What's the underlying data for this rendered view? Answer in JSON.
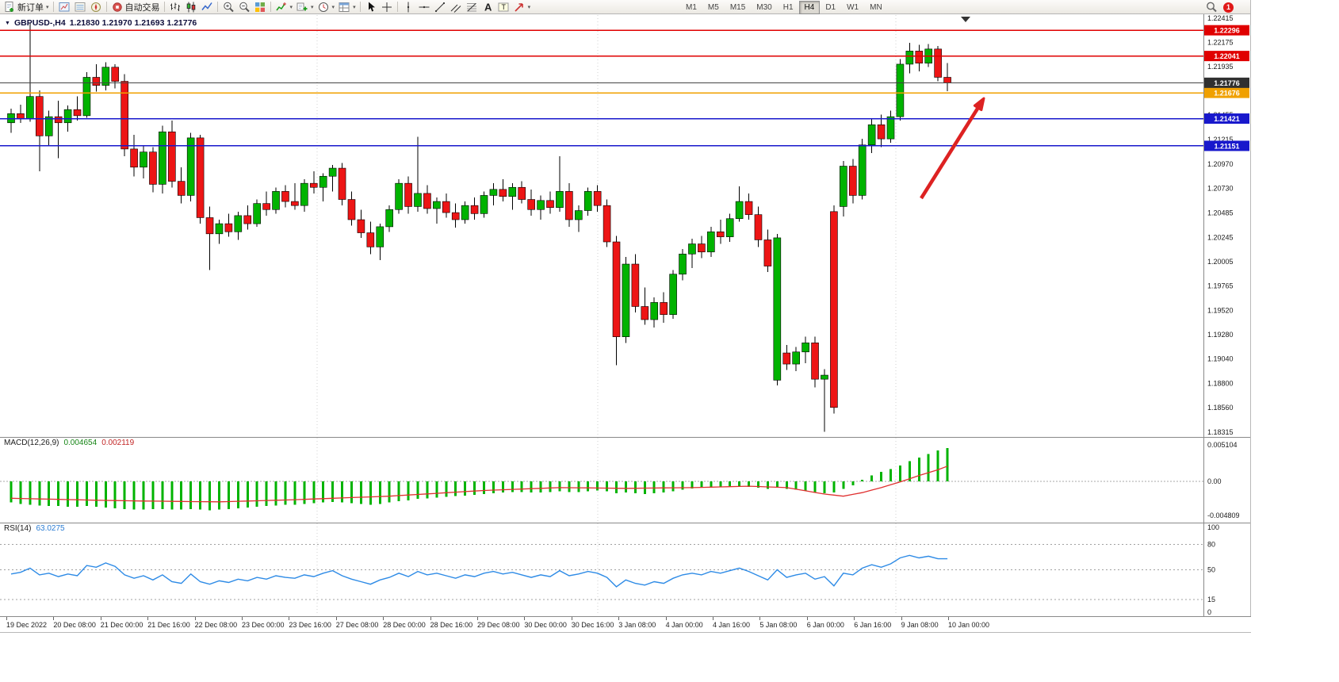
{
  "toolbar": {
    "new_order_label": "新订单",
    "autotrading_label": "自动交易",
    "buttons": [
      {
        "name": "new-order",
        "icon": "new-order",
        "label_key": "new_order_label",
        "caret": true
      },
      {
        "sep": true
      },
      {
        "name": "charts",
        "icon": "charts"
      },
      {
        "name": "market-watch",
        "icon": "market-watch"
      },
      {
        "name": "navigator",
        "icon": "navigator"
      },
      {
        "sep": true
      },
      {
        "name": "autotrading",
        "icon": "autotrading",
        "label_key": "autotrading_label"
      },
      {
        "sep": true
      },
      {
        "name": "bar-chart-type",
        "icon": "bars-type"
      },
      {
        "name": "candlestick-type",
        "icon": "candles-type"
      },
      {
        "name": "line-chart-type",
        "icon": "line-type"
      },
      {
        "sep": true
      },
      {
        "name": "zoom-in",
        "icon": "zoom-in"
      },
      {
        "name": "zoom-out",
        "icon": "zoom-out"
      },
      {
        "name": "tile-windows",
        "icon": "tile"
      },
      {
        "sep": true
      },
      {
        "name": "indicators",
        "icon": "indicators",
        "caret": true
      },
      {
        "name": "add-indicator",
        "icon": "add-indicator",
        "caret": true
      },
      {
        "name": "periods",
        "icon": "periods",
        "caret": true
      },
      {
        "name": "templates",
        "icon": "templates",
        "caret": true
      },
      {
        "sep": true
      },
      {
        "name": "cursor",
        "icon": "cursor"
      },
      {
        "name": "crosshair",
        "icon": "crosshair"
      },
      {
        "sep": true
      },
      {
        "name": "vertical-line",
        "icon": "vline"
      },
      {
        "name": "horizontal-line",
        "icon": "hline"
      },
      {
        "name": "trendline",
        "icon": "trendline"
      },
      {
        "name": "equidistant-channel",
        "icon": "channel"
      },
      {
        "name": "fibonacci",
        "icon": "fibo"
      },
      {
        "name": "text",
        "icon": "text"
      },
      {
        "name": "text-label",
        "icon": "label"
      },
      {
        "name": "arrows",
        "icon": "arrows",
        "caret": true
      }
    ],
    "timeframes": [
      "M1",
      "M5",
      "M15",
      "M30",
      "H1",
      "H4",
      "D1",
      "W1",
      "MN"
    ],
    "active_timeframe": "H4",
    "notification_count": "1"
  },
  "chart": {
    "symbol_label": "GBPUSD-,H4",
    "ohlc_text": "1.21830 1.21970 1.21693 1.21776",
    "macd": {
      "name": "MACD(12,26,9)",
      "value_main": "0.004654",
      "value_signal": "0.002119"
    },
    "rsi": {
      "name": "RSI(14)",
      "value": "63.0275"
    }
  },
  "chart_data": [
    {
      "type": "candlestick",
      "symbol": "GBPUSD",
      "timeframe": "H4",
      "last_ohlc": {
        "open": 1.2183,
        "high": 1.2197,
        "low": 1.21693,
        "close": 1.21776
      },
      "price_range": [
        1.18315,
        1.22415
      ],
      "up_color": "#00B300",
      "down_color": "#ED1515",
      "price_axis_ticks": [
        "1.22415",
        "1.22175",
        "1.21935",
        "1.21695",
        "1.21455",
        "1.21215",
        "1.20970",
        "1.20730",
        "1.20485",
        "1.20245",
        "1.20005",
        "1.19765",
        "1.19520",
        "1.19280",
        "1.19040",
        "1.18800",
        "1.18560",
        "1.18315"
      ],
      "hlines": [
        {
          "label": "1.22296",
          "price": 1.22296,
          "color": "#e00000"
        },
        {
          "label": "1.22041",
          "price": 1.22041,
          "color": "#e00000"
        },
        {
          "label": "1.21676",
          "price": 1.21676,
          "color": "#f0a000"
        },
        {
          "label": "1.21421",
          "price": 1.21421,
          "color": "#1818cc"
        },
        {
          "label": "1.21151",
          "price": 1.21151,
          "color": "#1818cc"
        }
      ],
      "current_price_line": {
        "label": "1.21776",
        "price": 1.21776,
        "color": "#303030"
      },
      "annotation": {
        "type": "arrow",
        "direction": "up-right",
        "color": "#dd2222"
      },
      "x_labels": [
        "19 Dec 2022",
        "20 Dec 08:00",
        "21 Dec 00:00",
        "21 Dec 16:00",
        "22 Dec 08:00",
        "23 Dec 00:00",
        "23 Dec 16:00",
        "27 Dec 08:00",
        "28 Dec 00:00",
        "28 Dec 16:00",
        "29 Dec 08:00",
        "30 Dec 00:00",
        "30 Dec 16:00",
        "3 Jan 08:00",
        "4 Jan 00:00",
        "4 Jan 16:00",
        "5 Jan 08:00",
        "6 Jan 00:00",
        "6 Jan 16:00",
        "9 Jan 08:00",
        "10 Jan 00:00"
      ],
      "candles": [
        [
          1.2138,
          1.2152,
          1.2128,
          1.2147
        ],
        [
          1.2147,
          1.2156,
          1.2138,
          1.2142
        ],
        [
          1.2142,
          1.2237,
          1.2139,
          1.2164
        ],
        [
          1.2164,
          1.217,
          1.209,
          1.2125
        ],
        [
          1.2125,
          1.215,
          1.2115,
          1.2144
        ],
        [
          1.2144,
          1.216,
          1.2103,
          1.2138
        ],
        [
          1.2138,
          1.2155,
          1.2129,
          1.2151
        ],
        [
          1.2151,
          1.2164,
          1.214,
          1.2145
        ],
        [
          1.2145,
          1.2188,
          1.2143,
          1.2183
        ],
        [
          1.2183,
          1.2196,
          1.2169,
          1.2175
        ],
        [
          1.2175,
          1.2198,
          1.217,
          1.2193
        ],
        [
          1.2193,
          1.2196,
          1.2172,
          1.2179
        ],
        [
          1.2179,
          1.2186,
          1.2105,
          1.2112
        ],
        [
          1.2112,
          1.2126,
          1.2085,
          1.2094
        ],
        [
          1.2094,
          1.2116,
          1.2083,
          1.2109
        ],
        [
          1.2109,
          1.2114,
          1.2069,
          1.2077
        ],
        [
          1.2077,
          1.2135,
          1.2068,
          1.2129
        ],
        [
          1.2129,
          1.214,
          1.2074,
          1.208
        ],
        [
          1.208,
          1.2094,
          1.2058,
          1.2066
        ],
        [
          1.2066,
          1.2128,
          1.206,
          1.2123
        ],
        [
          1.2123,
          1.2126,
          1.2038,
          1.2044
        ],
        [
          1.2044,
          1.2055,
          1.1992,
          1.2028
        ],
        [
          1.2028,
          1.2042,
          1.2018,
          1.2038
        ],
        [
          1.2038,
          1.2048,
          1.2025,
          1.203
        ],
        [
          1.203,
          1.205,
          1.2022,
          1.2046
        ],
        [
          1.2046,
          1.2056,
          1.2032,
          1.2038
        ],
        [
          1.2038,
          1.2062,
          1.2035,
          1.2058
        ],
        [
          1.2058,
          1.207,
          1.2046,
          1.2052
        ],
        [
          1.2052,
          1.2074,
          1.2048,
          1.207
        ],
        [
          1.207,
          1.2076,
          1.2054,
          1.206
        ],
        [
          1.206,
          1.2078,
          1.2052,
          1.2056
        ],
        [
          1.2056,
          1.2082,
          1.205,
          1.2078
        ],
        [
          1.2078,
          1.209,
          1.2068,
          1.2074
        ],
        [
          1.2074,
          1.2088,
          1.206,
          1.2085
        ],
        [
          1.2085,
          1.2096,
          1.207,
          1.2093
        ],
        [
          1.2093,
          1.2098,
          1.2056,
          1.2062
        ],
        [
          1.2062,
          1.207,
          1.2036,
          1.2042
        ],
        [
          1.2042,
          1.2052,
          1.2024,
          1.2029
        ],
        [
          1.2029,
          1.204,
          1.2008,
          1.2015
        ],
        [
          1.2015,
          1.2038,
          1.2002,
          1.2035
        ],
        [
          1.2035,
          1.2056,
          1.203,
          1.2052
        ],
        [
          1.2052,
          1.2082,
          1.2048,
          1.2078
        ],
        [
          1.2078,
          1.2085,
          1.2048,
          1.2055
        ],
        [
          1.2055,
          1.2124,
          1.205,
          1.2068
        ],
        [
          1.2068,
          1.2076,
          1.2048,
          1.2053
        ],
        [
          1.2053,
          1.2064,
          1.2038,
          1.206
        ],
        [
          1.206,
          1.2068,
          1.2044,
          1.2049
        ],
        [
          1.2049,
          1.2058,
          1.2034,
          1.2042
        ],
        [
          1.2042,
          1.206,
          1.2038,
          1.2056
        ],
        [
          1.2056,
          1.2064,
          1.2042,
          1.2048
        ],
        [
          1.2048,
          1.207,
          1.2044,
          1.2066
        ],
        [
          1.2066,
          1.2078,
          1.2056,
          1.2072
        ],
        [
          1.2072,
          1.2082,
          1.206,
          1.2065
        ],
        [
          1.2065,
          1.2078,
          1.2052,
          1.2074
        ],
        [
          1.2074,
          1.208,
          1.2058,
          1.2062
        ],
        [
          1.2062,
          1.2072,
          1.2046,
          1.2052
        ],
        [
          1.2052,
          1.2066,
          1.2042,
          1.2061
        ],
        [
          1.2061,
          1.207,
          1.2048,
          1.2054
        ],
        [
          1.2054,
          1.2105,
          1.205,
          1.207
        ],
        [
          1.207,
          1.2078,
          1.2035,
          1.2042
        ],
        [
          1.2042,
          1.2056,
          1.203,
          1.2051
        ],
        [
          1.2051,
          1.2074,
          1.2046,
          1.207
        ],
        [
          1.207,
          1.2076,
          1.205,
          1.2056
        ],
        [
          1.2056,
          1.2062,
          1.2015,
          1.202
        ],
        [
          1.202,
          1.2026,
          1.1898,
          1.1926
        ],
        [
          1.1926,
          1.2005,
          1.192,
          1.1998
        ],
        [
          1.1998,
          1.2008,
          1.195,
          1.1956
        ],
        [
          1.1956,
          1.1975,
          1.1938,
          1.1943
        ],
        [
          1.1943,
          1.1965,
          1.1935,
          1.196
        ],
        [
          1.196,
          1.197,
          1.194,
          1.1948
        ],
        [
          1.1948,
          1.1992,
          1.1944,
          1.1988
        ],
        [
          1.1988,
          1.2013,
          1.1982,
          1.2008
        ],
        [
          1.2008,
          1.2023,
          1.1994,
          1.2018
        ],
        [
          1.2018,
          1.2026,
          1.2004,
          1.201
        ],
        [
          1.201,
          1.2035,
          1.2005,
          1.203
        ],
        [
          1.203,
          1.2042,
          1.2018,
          1.2025
        ],
        [
          1.2025,
          1.2048,
          1.202,
          1.2043
        ],
        [
          1.2043,
          1.2075,
          1.204,
          1.206
        ],
        [
          1.206,
          1.2068,
          1.2042,
          1.2047
        ],
        [
          1.2047,
          1.2055,
          1.2015,
          1.2022
        ],
        [
          1.2022,
          1.2032,
          1.199,
          1.1996
        ],
        [
          1.1883,
          1.2028,
          1.1878,
          1.2024
        ],
        [
          1.191,
          1.1918,
          1.1893,
          1.1899
        ],
        [
          1.1899,
          1.1916,
          1.1892,
          1.1911
        ],
        [
          1.1911,
          1.1926,
          1.19,
          1.192
        ],
        [
          1.192,
          1.1926,
          1.1876,
          1.1884
        ],
        [
          1.1884,
          1.1894,
          1.1832,
          1.1888
        ],
        [
          1.205,
          1.2056,
          1.185,
          1.1856
        ],
        [
          1.2055,
          1.21,
          1.2045,
          1.2095
        ],
        [
          1.2095,
          1.2102,
          1.2058,
          1.2066
        ],
        [
          1.2066,
          1.2122,
          1.2062,
          1.2116
        ],
        [
          1.2116,
          1.2142,
          1.2108,
          1.2136
        ],
        [
          1.2136,
          1.2146,
          1.2114,
          1.2122
        ],
        [
          1.2122,
          1.215,
          1.2118,
          1.2144
        ],
        [
          1.2144,
          1.2201,
          1.214,
          1.2196
        ],
        [
          1.2196,
          1.2217,
          1.2187,
          1.2209
        ],
        [
          1.2209,
          1.2215,
          1.2189,
          1.2197
        ],
        [
          1.2197,
          1.2216,
          1.2193,
          1.2211
        ],
        [
          1.2211,
          1.2214,
          1.2179,
          1.2183
        ],
        [
          1.2183,
          1.2197,
          1.21693,
          1.21776
        ]
      ]
    },
    {
      "type": "bar",
      "name": "MACD",
      "params": "(12,26,9)",
      "axis_labels": [
        "0.005104",
        "0.00",
        "-0.004809"
      ],
      "range": [
        -0.004809,
        0.005104
      ],
      "histogram_color": "#00B300",
      "signal_color": "#e03030",
      "values": [
        -0.003,
        -0.0032,
        -0.0033,
        -0.0034,
        -0.0035,
        -0.0035,
        -0.0036,
        -0.0036,
        -0.0035,
        -0.0036,
        -0.0037,
        -0.0038,
        -0.0039,
        -0.004,
        -0.004,
        -0.0039,
        -0.0039,
        -0.004,
        -0.004,
        -0.0039,
        -0.004,
        -0.0041,
        -0.004,
        -0.0039,
        -0.0038,
        -0.0037,
        -0.0036,
        -0.0035,
        -0.0034,
        -0.0033,
        -0.0033,
        -0.0032,
        -0.0031,
        -0.003,
        -0.0029,
        -0.003,
        -0.0031,
        -0.0032,
        -0.0033,
        -0.0032,
        -0.003,
        -0.0028,
        -0.0027,
        -0.0025,
        -0.0024,
        -0.0023,
        -0.0022,
        -0.0021,
        -0.002,
        -0.0019,
        -0.0018,
        -0.0017,
        -0.0016,
        -0.0015,
        -0.0015,
        -0.0016,
        -0.0016,
        -0.0015,
        -0.0014,
        -0.0015,
        -0.0015,
        -0.0014,
        -0.0013,
        -0.0014,
        -0.0017,
        -0.0016,
        -0.0017,
        -0.0018,
        -0.0017,
        -0.0016,
        -0.0014,
        -0.0012,
        -0.001,
        -0.0009,
        -0.0008,
        -0.0008,
        -0.0007,
        -0.0007,
        -0.0008,
        -0.0009,
        -0.0011,
        -0.0009,
        -0.0011,
        -0.0012,
        -0.0013,
        -0.0015,
        -0.0017,
        -0.0016,
        -0.0011,
        -0.0006,
        0.0002,
        0.0008,
        0.0013,
        0.0017,
        0.0022,
        0.0028,
        0.0033,
        0.0038,
        0.0043,
        0.004654
      ],
      "signal": [
        -0.0024,
        -0.00243,
        -0.00246,
        -0.00249,
        -0.00252,
        -0.00255,
        -0.00258,
        -0.00261,
        -0.00264,
        -0.00267,
        -0.0027,
        -0.00272,
        -0.00274,
        -0.00276,
        -0.00278,
        -0.0028,
        -0.00281,
        -0.00283,
        -0.00284,
        -0.00286,
        -0.00287,
        -0.00289,
        -0.0029,
        -0.00286,
        -0.00282,
        -0.00279,
        -0.00275,
        -0.00271,
        -0.00267,
        -0.00264,
        -0.0026,
        -0.00255,
        -0.0025,
        -0.00245,
        -0.0024,
        -0.00235,
        -0.0023,
        -0.00225,
        -0.0022,
        -0.00215,
        -0.0021,
        -0.00202,
        -0.00194,
        -0.00186,
        -0.00178,
        -0.0017,
        -0.00162,
        -0.00154,
        -0.00146,
        -0.00138,
        -0.0013,
        -0.00125,
        -0.0012,
        -0.00115,
        -0.0011,
        -0.00105,
        -0.001,
        -0.00095,
        -0.0009,
        -0.00091,
        -0.00093,
        -0.00094,
        -0.00096,
        -0.00097,
        -0.00099,
        -0.001,
        -0.00099,
        -0.00097,
        -0.00096,
        -0.00094,
        -0.00093,
        -0.00091,
        -0.0009,
        -0.00087,
        -0.00083,
        -0.0008,
        -0.00077,
        -0.00073,
        -0.0007,
        -0.00075,
        -0.0008,
        -0.00085,
        -0.0009,
        -0.00113,
        -0.00135,
        -0.00158,
        -0.0018,
        -0.00195,
        -0.0021,
        -0.00185,
        -0.0016,
        -0.00125,
        -0.0009,
        -0.0005,
        -0.0001,
        0.00035,
        0.0008,
        0.0012,
        0.0016,
        0.002119
      ]
    },
    {
      "type": "line",
      "name": "RSI",
      "params": "(14)",
      "range": [
        0,
        100
      ],
      "levels": [
        15,
        50,
        80
      ],
      "axis_labels": [
        "100",
        "80",
        "50",
        "15",
        "0"
      ],
      "line_color": "#2E8BE6",
      "values": [
        45,
        47,
        52,
        44,
        46,
        42,
        45,
        43,
        55,
        53,
        58,
        54,
        44,
        40,
        43,
        38,
        44,
        36,
        34,
        45,
        36,
        33,
        37,
        35,
        39,
        37,
        41,
        39,
        43,
        41,
        40,
        44,
        42,
        46,
        49,
        43,
        39,
        36,
        33,
        38,
        41,
        46,
        42,
        48,
        44,
        46,
        43,
        40,
        44,
        42,
        46,
        48,
        45,
        47,
        44,
        41,
        44,
        42,
        49,
        43,
        45,
        48,
        46,
        41,
        30,
        38,
        34,
        32,
        36,
        34,
        40,
        44,
        46,
        44,
        48,
        46,
        49,
        52,
        48,
        43,
        38,
        50,
        41,
        44,
        46,
        39,
        42,
        31,
        46,
        44,
        52,
        56,
        53,
        57,
        64,
        67,
        64,
        66,
        63,
        63.03
      ]
    }
  ]
}
